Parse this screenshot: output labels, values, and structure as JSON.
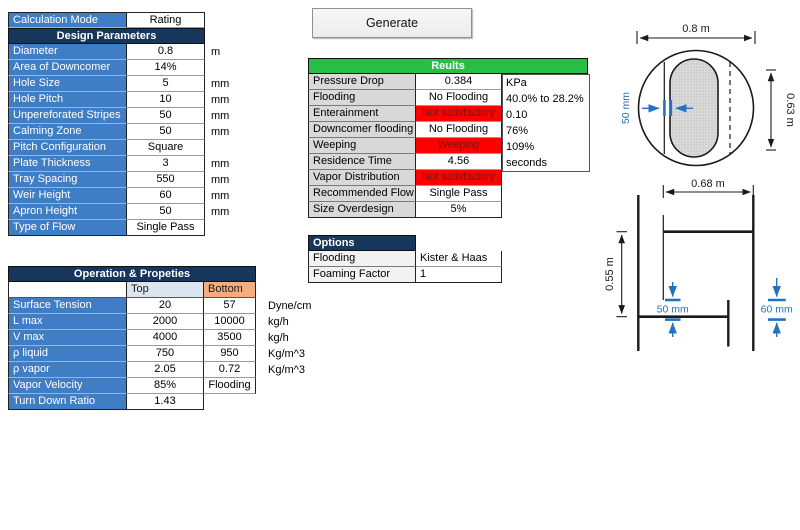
{
  "design_table": {
    "mode_label": "Calculation Mode",
    "mode_value": "Rating",
    "header": "Design Parameters",
    "rows": [
      {
        "label": "Diameter",
        "value": "0.8",
        "unit": "m"
      },
      {
        "label": "Area of Downcomer",
        "value": "14%",
        "unit": ""
      },
      {
        "label": "Hole Size",
        "value": "5",
        "unit": "mm"
      },
      {
        "label": "Hole Pitch",
        "value": "10",
        "unit": "mm"
      },
      {
        "label": "Unpereforated Stripes",
        "value": "50",
        "unit": "mm"
      },
      {
        "label": "Calming Zone",
        "value": "50",
        "unit": "mm"
      },
      {
        "label": "Pitch Configuration",
        "value": "Square",
        "unit": ""
      },
      {
        "label": "Plate Thickness",
        "value": "3",
        "unit": "mm"
      },
      {
        "label": "Tray Spacing",
        "value": "550",
        "unit": "mm"
      },
      {
        "label": "Weir Height",
        "value": "60",
        "unit": "mm"
      },
      {
        "label": "Apron Height",
        "value": "50",
        "unit": "mm"
      },
      {
        "label": "Type of Flow",
        "value": "Single Pass",
        "unit": ""
      }
    ]
  },
  "generate_button": {
    "label": "Generate"
  },
  "results_table": {
    "header": "Reults",
    "rows": [
      {
        "label": "Pressure Drop",
        "value": "0.384",
        "unit": "KPa",
        "status": "normal"
      },
      {
        "label": "Flooding",
        "value": "No Flooding",
        "unit": "40.0% to 28.2%",
        "status": "normal"
      },
      {
        "label": "Enterainment",
        "value": "Not satisfactory",
        "unit": "0.10",
        "status": "bad"
      },
      {
        "label": "Downcomer flooding",
        "value": "No Flooding",
        "unit": "76%",
        "status": "normal"
      },
      {
        "label": "Weeping",
        "value": "Weeping",
        "unit": "109%",
        "status": "bad"
      },
      {
        "label": "Residence Time",
        "value": "4.56",
        "unit": "seconds",
        "status": "normal"
      },
      {
        "label": "Vapor Distribution",
        "value": "Not satisfactory",
        "unit": "",
        "status": "bad"
      },
      {
        "label": "Recommended Flow",
        "value": "Single Pass",
        "unit": "",
        "status": "normal"
      },
      {
        "label": "Size Overdesign",
        "value": "5%",
        "unit": "",
        "status": "normal"
      }
    ]
  },
  "options_table": {
    "header": "Options",
    "rows": [
      {
        "label": "Flooding",
        "value": "Kister & Haas"
      },
      {
        "label": "Foaming Factor",
        "value": "1"
      }
    ]
  },
  "operation_table": {
    "header": "Operation & Propeties",
    "col_top": "Top",
    "col_bottom": "Bottom",
    "rows": [
      {
        "label": "Surface Tension",
        "top": "20",
        "bottom": "57",
        "unit": "Dyne/cm"
      },
      {
        "label": "L max",
        "top": "2000",
        "bottom": "10000",
        "unit": "kg/h"
      },
      {
        "label": "V max",
        "top": "4000",
        "bottom": "3500",
        "unit": "kg/h"
      },
      {
        "label": "ρ liquid",
        "top": "750",
        "bottom": "950",
        "unit": "Kg/m^3"
      },
      {
        "label": "ρ vapor",
        "top": "2.05",
        "bottom": "0.72",
        "unit": "Kg/m^3"
      },
      {
        "label": "Vapor Velocity",
        "top": "85%",
        "bottom": "Flooding",
        "unit": ""
      },
      {
        "label": "Turn Down Ratio",
        "top": "1.43",
        "bottom": null,
        "unit": ""
      }
    ]
  },
  "diagram_top": {
    "width_label": "0.8 m",
    "height_label": "0.63 m",
    "downcomer_label": "50 mm"
  },
  "diagram_bottom": {
    "width_label": "0.68 m",
    "height_label": "0.55 m",
    "clearance_label": "50 mm",
    "weir_label": "60 mm"
  },
  "colors": {
    "label_blue": "#3F7DC4",
    "header_navy": "#16365C",
    "results_green": "#28BE46",
    "alert_red": "#FE0000",
    "alert_text_dark_red": "#7E120A",
    "top_column_blue": "#DCE6F1",
    "bottom_column_orange": "#F6AD7B",
    "results_label_gray": "#D9D9D9",
    "diagram_blue": "#2173C2"
  }
}
